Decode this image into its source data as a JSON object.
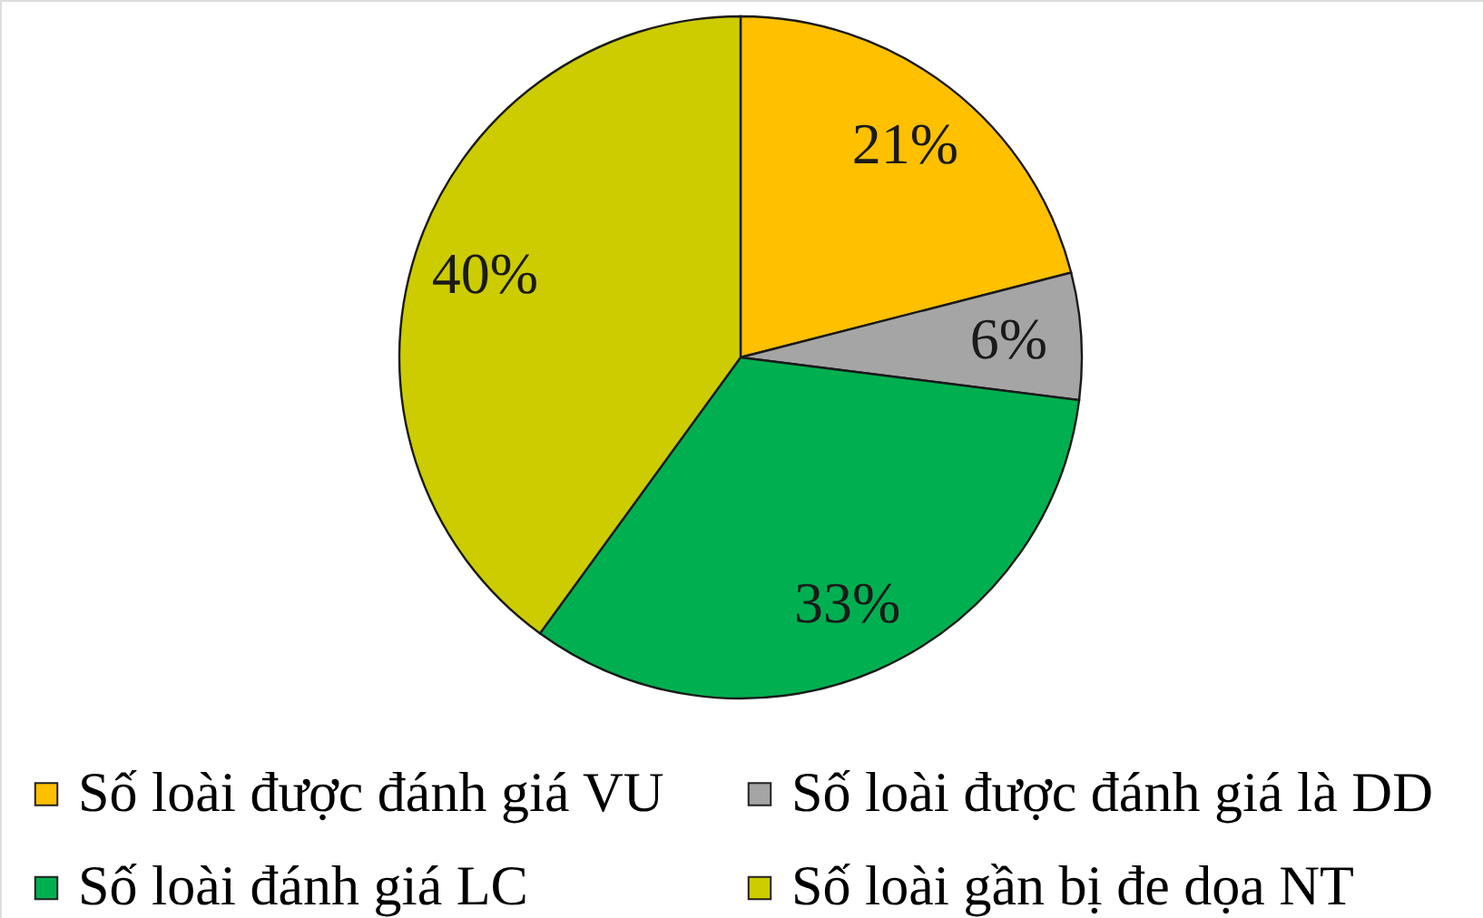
{
  "chart_data": {
    "type": "pie",
    "categories": [
      "Số loài được đánh giá VU",
      "Số loài được đánh giá là DD",
      "Số loài đánh giá LC",
      "Số loài gần bị đe dọa NT"
    ],
    "values": [
      21,
      6,
      33,
      40
    ],
    "colors": [
      "#ffc000",
      "#a5a5a5",
      "#00b050",
      "#cccc00"
    ],
    "value_labels": [
      "21%",
      "6%",
      "33%",
      "40%"
    ],
    "legend": "bottom"
  }
}
